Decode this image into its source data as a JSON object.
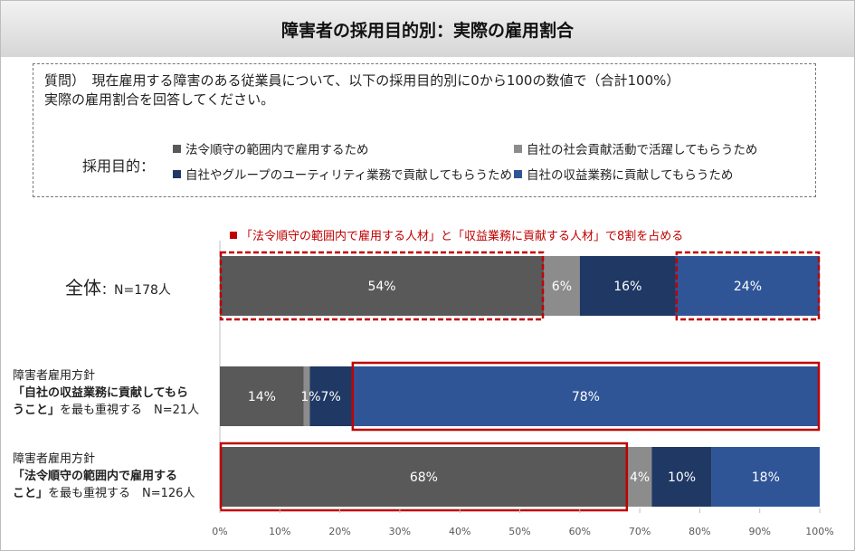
{
  "title": "障害者の採用目的別：実際の雇用割合",
  "question": {
    "line1": "質問）　現在雇用する障害のある従業員について、以下の採用目的別に0から100の数値で（合計100%）",
    "line2": "実際の雇用割合を回答してください。"
  },
  "purpose_label": "採用目的：",
  "note": "「法令順守の範囲内で雇用する人材」と「収益業務に貢献する人材」で8割を占める",
  "row_labels": {
    "r0_main": "全体",
    "r0_n": "：N=178人",
    "r1_l1": "障害者雇用方針",
    "r1_l2": "「自社の収益業務に貢献してもら",
    "r1_l3a": "うこと」",
    "r1_l3b": "を最も重視する　N=21人",
    "r2_l1": "障害者雇用方針",
    "r2_l2": "「法令順守の範囲内で雇用する",
    "r2_l3a": "こと」",
    "r2_l3b": "を最も重視する　N=126人"
  },
  "chart_data": {
    "type": "bar",
    "orientation": "horizontal",
    "stacked": true,
    "categories": [
      "全体",
      "自社の収益業務に貢献してもらうこと",
      "法令順守の範囲内で雇用すること"
    ],
    "series": [
      {
        "name": "法令順守の範囲内で雇用するため",
        "color": "#595959",
        "values": [
          54,
          14,
          68
        ],
        "labels": [
          "54%",
          "14%",
          "68%"
        ]
      },
      {
        "name": "自社の社会貢献活動で活躍してもらうため",
        "color": "#8c8c8c",
        "values": [
          6,
          1,
          4
        ],
        "labels": [
          "6%",
          "1%",
          "4%"
        ]
      },
      {
        "name": "自社やグループのユーティリティ業務で貢献してもらうため",
        "color": "#1f3864",
        "values": [
          16,
          7,
          10
        ],
        "labels": [
          "16%",
          "7%",
          "10%"
        ]
      },
      {
        "name": "自社の収益業務に貢献してもらうため",
        "color": "#2f5597",
        "values": [
          24,
          78,
          18
        ],
        "labels": [
          "24%",
          "78%",
          "18%"
        ]
      }
    ],
    "xlim": [
      0,
      100
    ],
    "xticks": [
      "0%",
      "10%",
      "20%",
      "30%",
      "40%",
      "50%",
      "60%",
      "70%",
      "80%",
      "90%",
      "100%"
    ],
    "highlight_color": "#c00000",
    "highlights": [
      {
        "row": 0,
        "series": 0,
        "style": "dashed"
      },
      {
        "row": 0,
        "series": 3,
        "style": "dashed"
      },
      {
        "row": 1,
        "series": 3,
        "style": "solid"
      },
      {
        "row": 2,
        "series": 0,
        "style": "solid"
      }
    ],
    "legend": "top"
  }
}
